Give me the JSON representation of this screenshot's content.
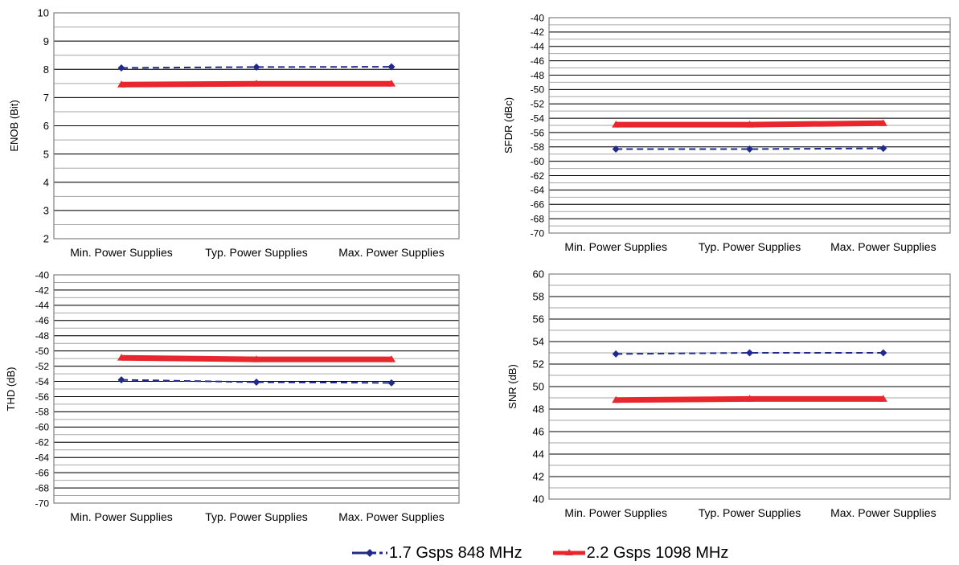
{
  "chart_data": [
    {
      "type": "line",
      "title": "",
      "xlabel": "",
      "ylabel": "ENOB (Bit)",
      "categories": [
        "Min. Power Supplies",
        "Typ. Power Supplies",
        "Max. Power Supplies"
      ],
      "ylim": [
        2,
        10
      ],
      "major_step": 1,
      "minor_step": 0.5,
      "series": [
        {
          "name": "1.7 Gsps 848 MHz",
          "values": [
            8.05,
            8.08,
            8.09
          ]
        },
        {
          "name": "2.2 Gsps 1098 MHz",
          "values": [
            7.46,
            7.49,
            7.49
          ]
        }
      ]
    },
    {
      "type": "line",
      "title": "",
      "xlabel": "",
      "ylabel": "SFDR (dBc)",
      "categories": [
        "Min. Power Supplies",
        "Typ. Power Supplies",
        "Max. Power Supplies"
      ],
      "ylim": [
        -70,
        -40
      ],
      "major_step": 2,
      "minor_step": 1,
      "series": [
        {
          "name": "1.7 Gsps 848 MHz",
          "values": [
            -58.3,
            -58.3,
            -58.2
          ]
        },
        {
          "name": "2.2 Gsps 1098 MHz",
          "values": [
            -54.9,
            -54.9,
            -54.7
          ]
        }
      ]
    },
    {
      "type": "line",
      "title": "",
      "xlabel": "",
      "ylabel": "THD (dB)",
      "categories": [
        "Min. Power Supplies",
        "Typ. Power Supplies",
        "Max. Power Supplies"
      ],
      "ylim": [
        -70,
        -40
      ],
      "major_step": 2,
      "minor_step": 1,
      "series": [
        {
          "name": "1.7 Gsps 848 MHz",
          "values": [
            -53.8,
            -54.1,
            -54.2
          ]
        },
        {
          "name": "2.2 Gsps 1098 MHz",
          "values": [
            -50.9,
            -51.1,
            -51.1
          ]
        }
      ]
    },
    {
      "type": "line",
      "title": "",
      "xlabel": "",
      "ylabel": "SNR (dB)",
      "categories": [
        "Min. Power Supplies",
        "Typ. Power Supplies",
        "Max. Power Supplies"
      ],
      "ylim": [
        40,
        60
      ],
      "major_step": 2,
      "minor_step": 1,
      "series": [
        {
          "name": "1.7 Gsps 848 MHz",
          "values": [
            52.9,
            53.0,
            53.0
          ]
        },
        {
          "name": "2.2 Gsps 1098 MHz",
          "values": [
            48.8,
            48.9,
            48.9
          ]
        }
      ]
    }
  ],
  "legend": {
    "placement": "bottom",
    "items": [
      {
        "label": "1.7 Gsps 848 MHz",
        "color": "#1f2a8c",
        "marker": "diamond",
        "dash": true
      },
      {
        "label": "2.2 Gsps 1098 MHz",
        "color": "#e8262d",
        "marker": "triangle",
        "dash": false
      }
    ]
  },
  "style": {
    "grid_major": "#000000",
    "grid_minor": "#a6a6a6",
    "frame": "#808080",
    "series1_color": "#1f2a8c",
    "series2_color": "#e8262d"
  }
}
